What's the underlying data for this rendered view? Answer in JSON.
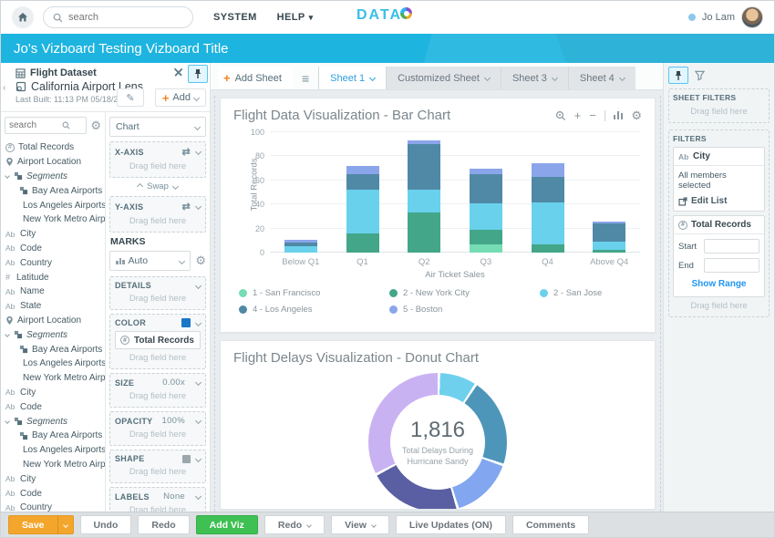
{
  "topbar": {
    "search_placeholder": "search",
    "menu_system": "SYSTEM",
    "menu_help": "HELP",
    "logo": "DATA",
    "user_name": "Jo Lam"
  },
  "banner": {
    "title": "Jo's Vizboard Testing Vizboard Title"
  },
  "dataset_panel": {
    "dataset_name": "Flight Dataset",
    "lens_name": "California Airport Lens",
    "last_built": "Last Built: 11:13 PM 05/18/2016",
    "add_label": "Add",
    "search_placeholder": "search",
    "fields": [
      {
        "label": "Total Records",
        "icon": "hash-circle"
      },
      {
        "label": "Airport Location",
        "icon": "location"
      },
      {
        "label": "Segments",
        "icon": "segments",
        "italic": true,
        "expandable": true
      },
      {
        "label": "Bay Area Airports",
        "icon": "blocks",
        "child": true
      },
      {
        "label": "Los Angeles Airports",
        "icon": "blocks",
        "child": true
      },
      {
        "label": "New York Metro Airp...",
        "icon": "blocks",
        "child": true
      },
      {
        "label": "City",
        "icon": "ab"
      },
      {
        "label": "Code",
        "icon": "ab"
      },
      {
        "label": "Country",
        "icon": "ab"
      },
      {
        "label": "Latitude",
        "icon": "hash"
      },
      {
        "label": "Name",
        "icon": "ab"
      },
      {
        "label": "State",
        "icon": "ab"
      },
      {
        "label": "Airport Location",
        "icon": "location"
      },
      {
        "label": "Segments",
        "icon": "segments",
        "italic": true,
        "expandable": true
      },
      {
        "label": "Bay Area Airports",
        "icon": "blocks",
        "child": true
      },
      {
        "label": "Los Angeles Airports",
        "icon": "blocks",
        "child": true
      },
      {
        "label": "New York Metro Airp...",
        "icon": "blocks",
        "child": true
      },
      {
        "label": "City",
        "icon": "ab"
      },
      {
        "label": "Code",
        "icon": "ab"
      },
      {
        "label": "Segments",
        "icon": "segments",
        "italic": true,
        "expandable": true
      },
      {
        "label": "Bay Area Airports",
        "icon": "blocks",
        "child": true
      },
      {
        "label": "Los Angeles Airports",
        "icon": "blocks",
        "child": true
      },
      {
        "label": "New York Metro Airp...",
        "icon": "blocks",
        "child": true
      },
      {
        "label": "City",
        "icon": "ab"
      },
      {
        "label": "Code",
        "icon": "ab"
      },
      {
        "label": "Country",
        "icon": "ab"
      }
    ]
  },
  "config_panel": {
    "chart_type": "Chart",
    "x_axis_label": "X-AXIS",
    "y_axis_label": "Y-AXIS",
    "swap_label": "Swap",
    "marks_label": "MARKS",
    "marks_value": "Auto",
    "details_label": "DETAILS",
    "color_label": "COLOR",
    "color_field": "Total Records",
    "color_value": "#1a76c6",
    "size_label": "SIZE",
    "size_value": "0.00x",
    "opacity_label": "OPACITY",
    "opacity_value": "100%",
    "shape_label": "SHAPE",
    "labels_label": "LABELS",
    "labels_value": "None",
    "drag_hint": "Drag field here"
  },
  "sheets": {
    "add_label": "Add Sheet",
    "tabs": [
      {
        "label": "Sheet 1",
        "active": true
      },
      {
        "label": "Customized Sheet",
        "active": false
      },
      {
        "label": "Sheet 3",
        "active": false
      },
      {
        "label": "Sheet 4",
        "active": false
      }
    ]
  },
  "chart_data": [
    {
      "type": "bar",
      "stacked": true,
      "title": "Flight Data Visualization - Bar Chart",
      "categories": [
        "Below Q1",
        "Q1",
        "Q2",
        "Q3",
        "Q4",
        "Above Q4"
      ],
      "series": [
        {
          "name": "1 - San Francisco",
          "color": "#75dcb4",
          "values": [
            0,
            0,
            0,
            7,
            0,
            0
          ]
        },
        {
          "name": "2 - New York City",
          "color": "#43a689",
          "values": [
            0,
            16,
            33,
            12,
            7,
            2
          ]
        },
        {
          "name": "2 - San Jose",
          "color": "#69d1ec",
          "values": [
            5,
            36,
            19,
            22,
            35,
            7
          ]
        },
        {
          "name": "4 - Los Angeles",
          "color": "#5089a6",
          "values": [
            3.5,
            13.5,
            38,
            24,
            21,
            15
          ]
        },
        {
          "name": "5 - Boston",
          "color": "#8ba5ea",
          "values": [
            2,
            6.5,
            3.5,
            5,
            11,
            2
          ]
        }
      ],
      "xlabel": "Air Ticket Sales",
      "ylabel": "Total Records",
      "ylim": [
        0,
        100
      ],
      "yticks": [
        0,
        20,
        40,
        60,
        80,
        100
      ],
      "grid": true,
      "legend_position": "bottom"
    },
    {
      "type": "donut",
      "title": "Flight Delays Visualization - Donut Chart",
      "center_value": "1,816",
      "center_label": "Total Delays During Hurricane Sandy",
      "segments": [
        {
          "color": "#6fd0ee",
          "fraction": 0.09
        },
        {
          "color": "#4e95ba",
          "fraction": 0.21
        },
        {
          "color": "#82a7f0",
          "fraction": 0.15
        },
        {
          "color": "#5a5fa3",
          "fraction": 0.22
        },
        {
          "color": "#c9b2f2",
          "fraction": 0.33
        }
      ]
    }
  ],
  "filters_panel": {
    "sheet_filters_label": "SHEET FILTERS",
    "filters_label": "FILTERS",
    "drag_hint": "Drag field here",
    "city_filter": {
      "field": "City",
      "status": "All members selected",
      "edit_label": "Edit List"
    },
    "range_filter": {
      "field": "Total Records",
      "start_label": "Start",
      "end_label": "End",
      "action_label": "Show Range"
    }
  },
  "toolbar": {
    "save_label": "Save",
    "undo_label": "Undo",
    "redo_label": "Redo",
    "add_viz_label": "Add Viz",
    "redo2_label": "Redo",
    "view_label": "View",
    "live_updates_label": "Live Updates (ON)",
    "comments_label": "Comments"
  },
  "icons": {
    "gear": "⚙",
    "pencil": "✎",
    "swap_h": "⇄",
    "hamburger": "≡",
    "plus": "+",
    "minus": "−"
  }
}
